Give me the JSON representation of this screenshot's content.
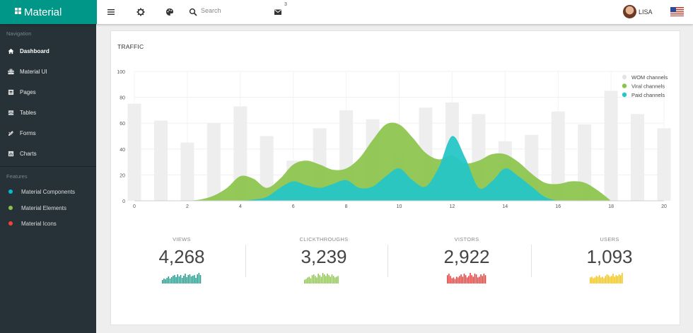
{
  "topbar": {
    "brand": "Material",
    "search_placeholder": "Search",
    "mail_count": "3",
    "user_name": "LISA"
  },
  "sidebar": {
    "nav_title": "Navigation",
    "nav_items": [
      {
        "label": "Dashboard",
        "icon": "home-icon"
      },
      {
        "label": "Material UI",
        "icon": "briefcase-icon"
      },
      {
        "label": "Pages",
        "icon": "pages-icon"
      },
      {
        "label": "Tables",
        "icon": "table-icon"
      },
      {
        "label": "Forms",
        "icon": "pencil-icon"
      },
      {
        "label": "Charts",
        "icon": "chart-icon"
      }
    ],
    "features_title": "Features",
    "features": [
      {
        "label": "Material Components",
        "color": "#00bcd4"
      },
      {
        "label": "Material Elements",
        "color": "#8bc34a"
      },
      {
        "label": "Material Icons",
        "color": "#f44336"
      }
    ]
  },
  "traffic": {
    "title": "TRAFFIC"
  },
  "chart_data": {
    "type": "area",
    "x": [
      0,
      1,
      2,
      3,
      4,
      5,
      6,
      7,
      8,
      9,
      10,
      11,
      12,
      13,
      14,
      15,
      16,
      17,
      18,
      19,
      20
    ],
    "xticks": [
      0,
      2,
      4,
      6,
      8,
      10,
      12,
      14,
      16,
      18,
      20
    ],
    "yticks": [
      0,
      20,
      40,
      60,
      80,
      100
    ],
    "ylim": [
      0,
      100
    ],
    "xlim": [
      0,
      20
    ],
    "grid": true,
    "legend_position": "top-right",
    "series": [
      {
        "name": "WOM channels",
        "type": "bar",
        "color": "#eeeeee",
        "values": [
          75,
          62,
          45,
          60,
          73,
          50,
          31,
          56,
          70,
          63,
          37,
          72,
          76,
          67,
          46,
          51,
          69,
          59,
          85,
          67,
          56
        ]
      },
      {
        "name": "Viral channels",
        "type": "area",
        "color": "#8bc34a",
        "x": [
          2,
          2.5,
          3,
          3.5,
          4,
          4.5,
          5,
          5.5,
          6,
          6.5,
          7,
          7.5,
          8,
          8.5,
          9,
          9.5,
          10,
          10.5,
          11,
          11.5,
          12,
          12.5,
          13,
          13.5,
          14,
          14.5,
          15,
          15.5,
          16,
          16.5,
          17,
          17.5,
          18
        ],
        "values": [
          0,
          1,
          4,
          10,
          19,
          17,
          10,
          17,
          28,
          31,
          28,
          24,
          25,
          33,
          47,
          59,
          59,
          49,
          37,
          32,
          35,
          29,
          31,
          36,
          36,
          30,
          21,
          14,
          13,
          15,
          14,
          8,
          0
        ]
      },
      {
        "name": "Paid channels",
        "type": "area",
        "color": "#26c6c6",
        "x": [
          4,
          4.5,
          5,
          5.5,
          6,
          6.5,
          7,
          7.5,
          8,
          8.5,
          9,
          9.5,
          10,
          10.5,
          11,
          11.5,
          12,
          12.5,
          13,
          13.5,
          14,
          14.5,
          15,
          15.5,
          16
        ],
        "values": [
          0,
          1,
          3,
          10,
          15,
          12,
          10,
          13,
          16,
          10,
          11,
          19,
          25,
          16,
          11,
          26,
          50,
          33,
          10,
          15,
          25,
          19,
          11,
          3,
          0
        ]
      }
    ]
  },
  "stats": [
    {
      "label": "VIEWS",
      "value": "4,268",
      "color": "#1b9a8a",
      "spark": [
        5,
        7,
        6,
        8,
        10,
        7,
        9,
        11,
        12,
        9,
        13,
        10,
        12,
        8,
        11,
        14,
        9,
        12,
        13,
        10,
        11,
        12,
        8,
        13,
        15,
        12
      ]
    },
    {
      "label": "CLICKTHROUGHS",
      "value": "3,239",
      "color": "#8bc34a",
      "spark": [
        5,
        6,
        8,
        9,
        7,
        11,
        12,
        10,
        8,
        13,
        11,
        9,
        14,
        12,
        10,
        13,
        11,
        9,
        12,
        10,
        8,
        9,
        10
      ]
    },
    {
      "label": "VISTORS",
      "value": "2,922",
      "color": "#e53935",
      "spark": [
        11,
        13,
        10,
        7,
        8,
        6,
        9,
        8,
        10,
        12,
        9,
        13,
        11,
        8,
        10,
        14,
        11,
        9,
        13,
        12,
        8,
        9,
        12,
        10,
        13,
        11
      ]
    },
    {
      "label": "USERS",
      "value": "1,093",
      "color": "#f4c20d",
      "spark": [
        8,
        9,
        7,
        8,
        10,
        9,
        11,
        8,
        9,
        7,
        10,
        12,
        11,
        9,
        10,
        13,
        9,
        11,
        10,
        12,
        11,
        14
      ]
    }
  ]
}
